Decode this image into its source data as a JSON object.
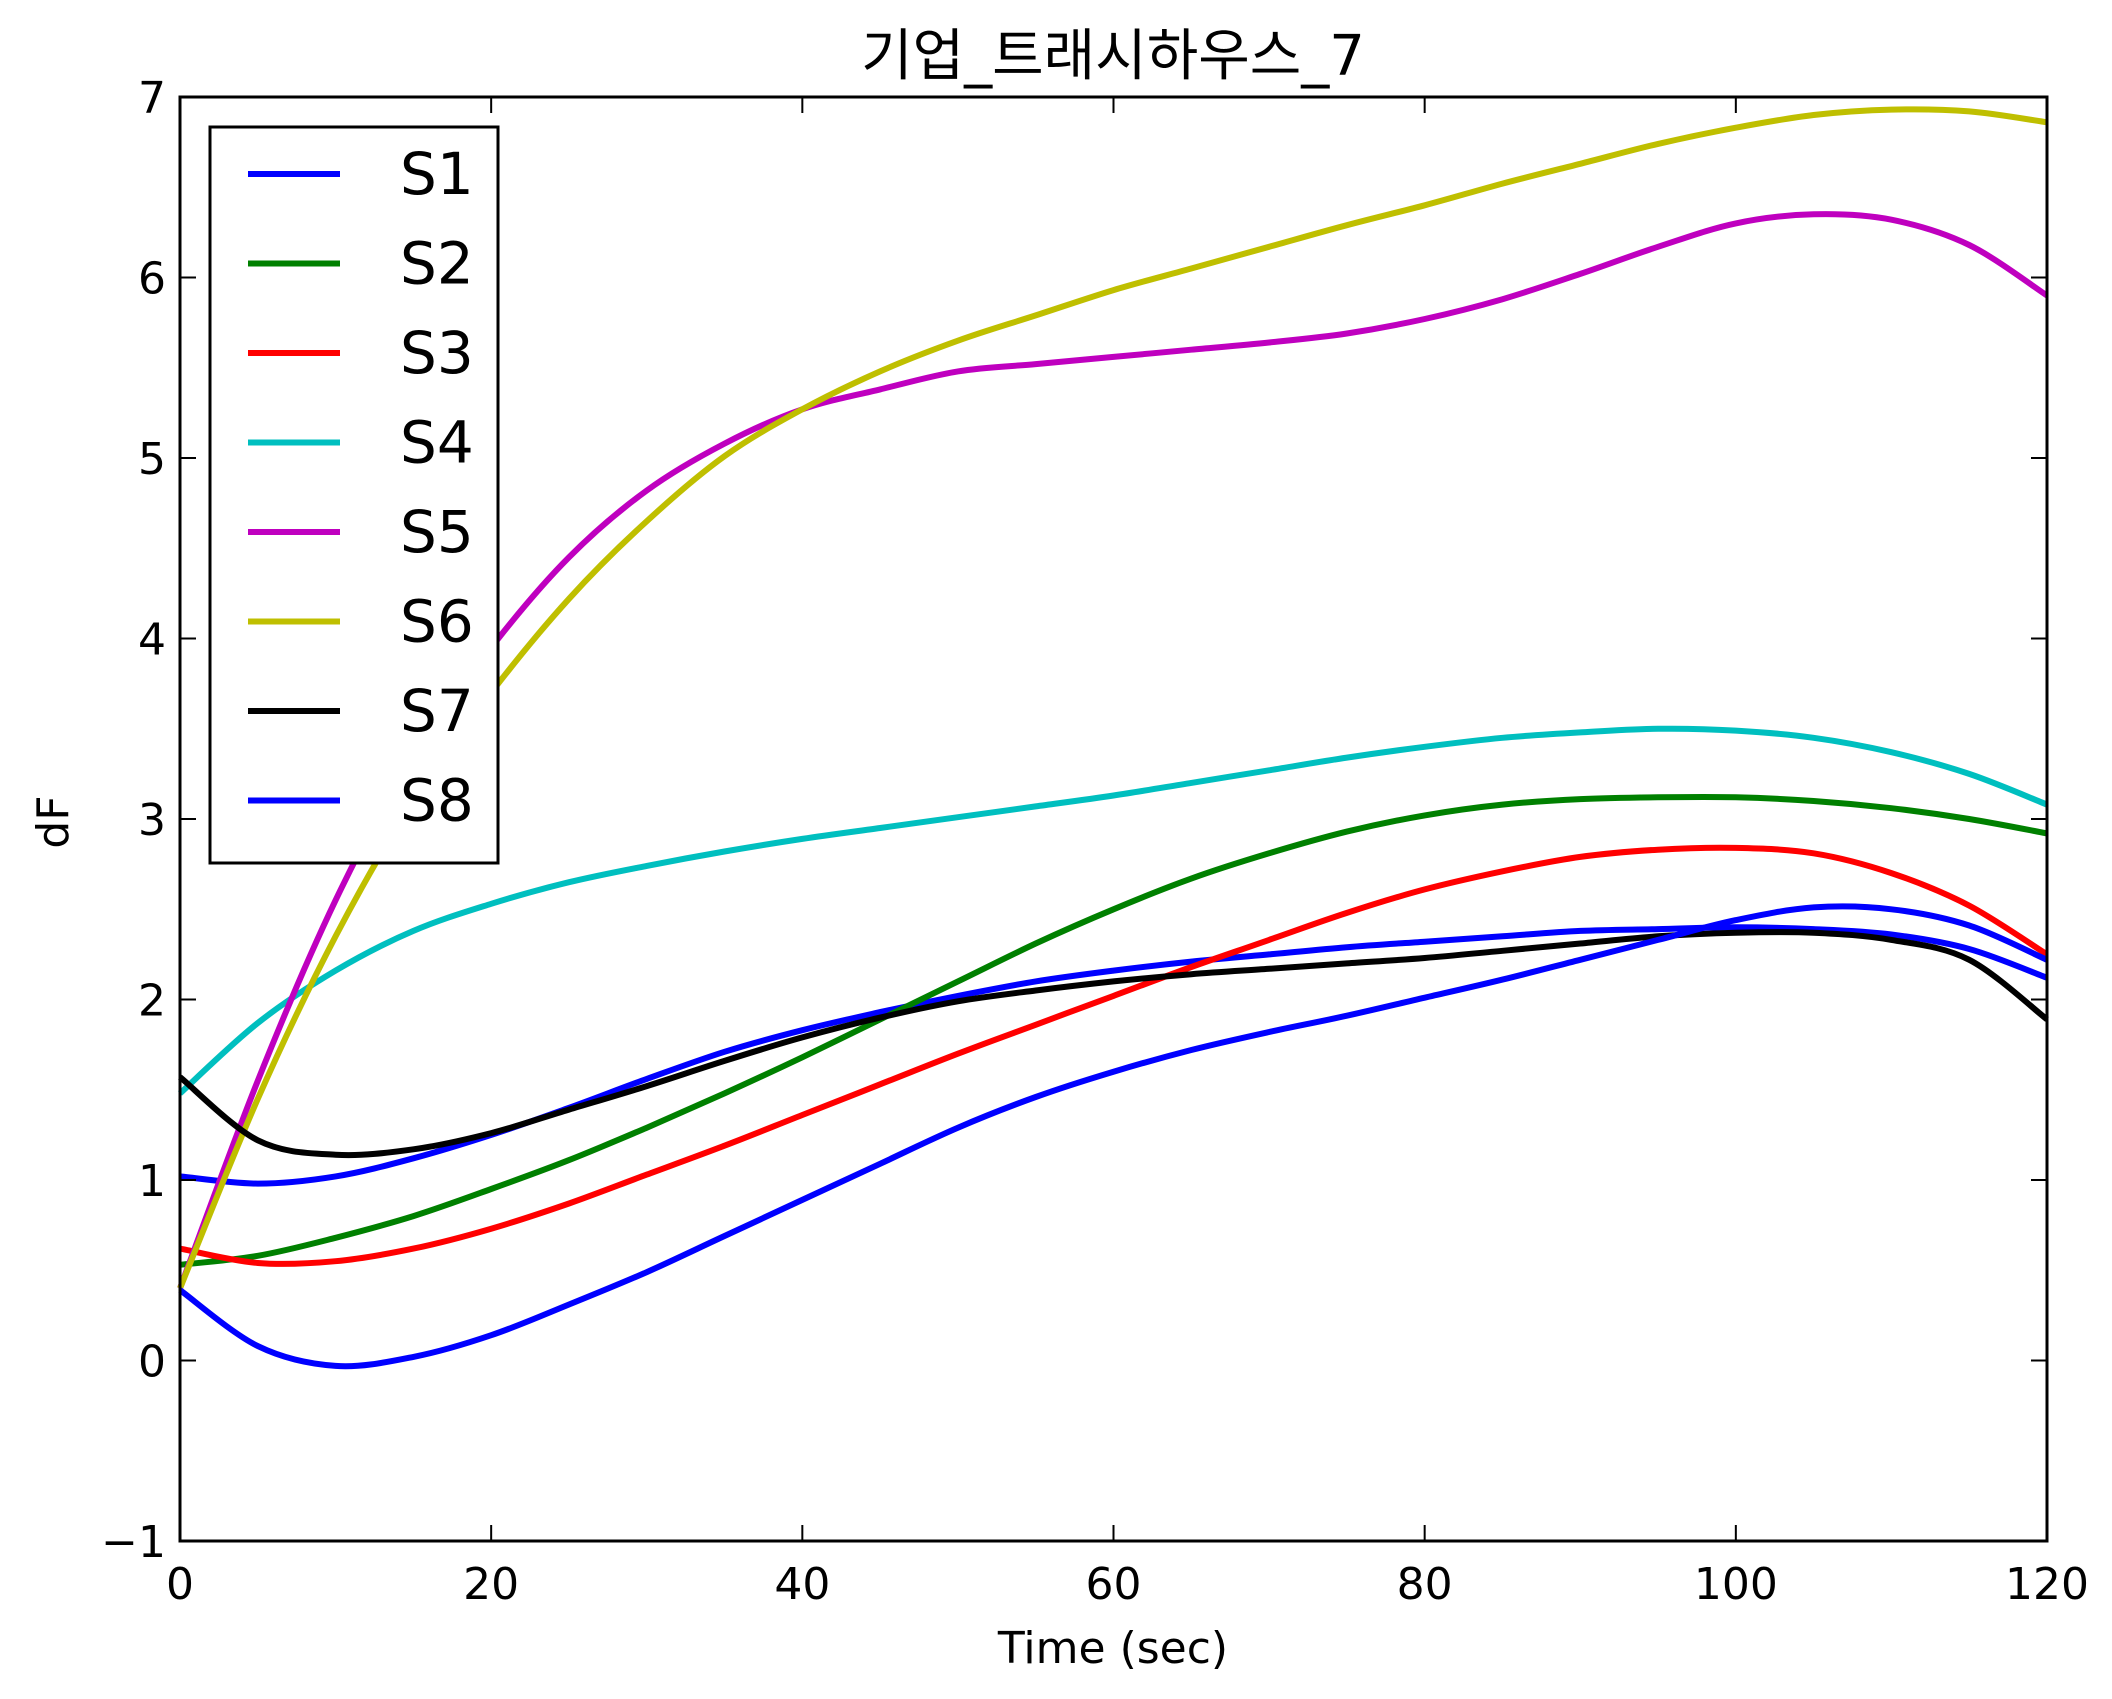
{
  "chart_data": {
    "type": "line",
    "title": "기업_트래시하우스_7",
    "xlabel": "Time (sec)",
    "ylabel": "dF",
    "xlim": [
      0,
      120
    ],
    "ylim": [
      -1,
      7
    ],
    "xticks": [
      0,
      20,
      40,
      60,
      80,
      100,
      120
    ],
    "xtick_labels": [
      "0",
      "20",
      "40",
      "60",
      "80",
      "100",
      "120"
    ],
    "yticks": [
      -1,
      0,
      1,
      2,
      3,
      4,
      5,
      6,
      7
    ],
    "ytick_labels": [
      "−1",
      "0",
      "1",
      "2",
      "3",
      "4",
      "5",
      "6",
      "7"
    ],
    "grid": false,
    "legend_position": "upper-left",
    "x": [
      0,
      5,
      10,
      15,
      20,
      25,
      30,
      35,
      40,
      45,
      50,
      55,
      60,
      65,
      70,
      75,
      80,
      85,
      90,
      95,
      100,
      105,
      110,
      115,
      120
    ],
    "series": [
      {
        "name": "S1",
        "color": "#0000ff",
        "values": [
          1.02,
          0.98,
          1.02,
          1.12,
          1.25,
          1.4,
          1.56,
          1.71,
          1.83,
          1.93,
          2.02,
          2.1,
          2.16,
          2.21,
          2.25,
          2.29,
          2.32,
          2.35,
          2.38,
          2.39,
          2.4,
          2.39,
          2.36,
          2.28,
          2.12
        ]
      },
      {
        "name": "S2",
        "color": "#008000",
        "values": [
          0.53,
          0.58,
          0.68,
          0.8,
          0.95,
          1.11,
          1.29,
          1.48,
          1.68,
          1.89,
          2.1,
          2.31,
          2.5,
          2.67,
          2.81,
          2.93,
          3.02,
          3.08,
          3.11,
          3.12,
          3.12,
          3.1,
          3.06,
          3.0,
          2.92
        ]
      },
      {
        "name": "S3",
        "color": "#ff0000",
        "values": [
          0.62,
          0.54,
          0.55,
          0.62,
          0.73,
          0.87,
          1.03,
          1.19,
          1.36,
          1.53,
          1.7,
          1.86,
          2.02,
          2.18,
          2.33,
          2.48,
          2.61,
          2.71,
          2.79,
          2.83,
          2.84,
          2.81,
          2.7,
          2.52,
          2.25
        ]
      },
      {
        "name": "S4",
        "color": "#00bfbf",
        "values": [
          1.48,
          1.87,
          2.16,
          2.38,
          2.53,
          2.65,
          2.74,
          2.82,
          2.89,
          2.95,
          3.01,
          3.07,
          3.13,
          3.2,
          3.27,
          3.34,
          3.4,
          3.45,
          3.48,
          3.5,
          3.49,
          3.45,
          3.37,
          3.25,
          3.08
        ]
      },
      {
        "name": "S5",
        "color": "#bf00bf",
        "values": [
          0.4,
          1.55,
          2.55,
          3.35,
          3.95,
          4.45,
          4.82,
          5.08,
          5.27,
          5.38,
          5.48,
          5.52,
          5.56,
          5.6,
          5.64,
          5.69,
          5.77,
          5.88,
          6.02,
          6.17,
          6.3,
          6.35,
          6.32,
          6.18,
          5.9
        ]
      },
      {
        "name": "S6",
        "color": "#bfbf00",
        "values": [
          0.4,
          1.45,
          2.35,
          3.1,
          3.7,
          4.22,
          4.65,
          5.01,
          5.27,
          5.48,
          5.65,
          5.79,
          5.93,
          6.05,
          6.17,
          6.29,
          6.4,
          6.52,
          6.63,
          6.74,
          6.83,
          6.9,
          6.93,
          6.92,
          6.86
        ]
      },
      {
        "name": "S7",
        "color": "#000000",
        "values": [
          1.57,
          1.22,
          1.14,
          1.17,
          1.26,
          1.39,
          1.52,
          1.66,
          1.79,
          1.9,
          1.99,
          2.05,
          2.1,
          2.14,
          2.17,
          2.2,
          2.23,
          2.27,
          2.31,
          2.35,
          2.37,
          2.37,
          2.33,
          2.22,
          1.89
        ]
      },
      {
        "name": "S8",
        "color": "#0000ff",
        "values": [
          0.39,
          0.08,
          -0.03,
          0.02,
          0.14,
          0.31,
          0.49,
          0.69,
          0.89,
          1.09,
          1.29,
          1.46,
          1.6,
          1.72,
          1.82,
          1.91,
          2.01,
          2.11,
          2.22,
          2.33,
          2.44,
          2.51,
          2.5,
          2.41,
          2.22
        ]
      }
    ]
  }
}
